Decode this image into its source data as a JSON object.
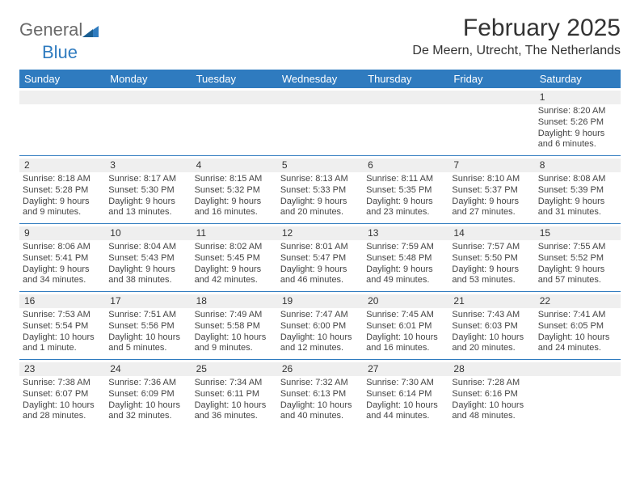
{
  "logo": {
    "text1": "General",
    "text2": "Blue"
  },
  "title": "February 2025",
  "location": "De Meern, Utrecht, The Netherlands",
  "colors": {
    "header_bar": "#2f7bbf",
    "daynum_bg": "#efefef",
    "text": "#333333",
    "rule": "#2f7bbf"
  },
  "days_of_week": [
    "Sunday",
    "Monday",
    "Tuesday",
    "Wednesday",
    "Thursday",
    "Friday",
    "Saturday"
  ],
  "weeks": [
    [
      {
        "n": "",
        "sunrise": "",
        "sunset": "",
        "daylight": ""
      },
      {
        "n": "",
        "sunrise": "",
        "sunset": "",
        "daylight": ""
      },
      {
        "n": "",
        "sunrise": "",
        "sunset": "",
        "daylight": ""
      },
      {
        "n": "",
        "sunrise": "",
        "sunset": "",
        "daylight": ""
      },
      {
        "n": "",
        "sunrise": "",
        "sunset": "",
        "daylight": ""
      },
      {
        "n": "",
        "sunrise": "",
        "sunset": "",
        "daylight": ""
      },
      {
        "n": "1",
        "sunrise": "Sunrise: 8:20 AM",
        "sunset": "Sunset: 5:26 PM",
        "daylight": "Daylight: 9 hours and 6 minutes."
      }
    ],
    [
      {
        "n": "2",
        "sunrise": "Sunrise: 8:18 AM",
        "sunset": "Sunset: 5:28 PM",
        "daylight": "Daylight: 9 hours and 9 minutes."
      },
      {
        "n": "3",
        "sunrise": "Sunrise: 8:17 AM",
        "sunset": "Sunset: 5:30 PM",
        "daylight": "Daylight: 9 hours and 13 minutes."
      },
      {
        "n": "4",
        "sunrise": "Sunrise: 8:15 AM",
        "sunset": "Sunset: 5:32 PM",
        "daylight": "Daylight: 9 hours and 16 minutes."
      },
      {
        "n": "5",
        "sunrise": "Sunrise: 8:13 AM",
        "sunset": "Sunset: 5:33 PM",
        "daylight": "Daylight: 9 hours and 20 minutes."
      },
      {
        "n": "6",
        "sunrise": "Sunrise: 8:11 AM",
        "sunset": "Sunset: 5:35 PM",
        "daylight": "Daylight: 9 hours and 23 minutes."
      },
      {
        "n": "7",
        "sunrise": "Sunrise: 8:10 AM",
        "sunset": "Sunset: 5:37 PM",
        "daylight": "Daylight: 9 hours and 27 minutes."
      },
      {
        "n": "8",
        "sunrise": "Sunrise: 8:08 AM",
        "sunset": "Sunset: 5:39 PM",
        "daylight": "Daylight: 9 hours and 31 minutes."
      }
    ],
    [
      {
        "n": "9",
        "sunrise": "Sunrise: 8:06 AM",
        "sunset": "Sunset: 5:41 PM",
        "daylight": "Daylight: 9 hours and 34 minutes."
      },
      {
        "n": "10",
        "sunrise": "Sunrise: 8:04 AM",
        "sunset": "Sunset: 5:43 PM",
        "daylight": "Daylight: 9 hours and 38 minutes."
      },
      {
        "n": "11",
        "sunrise": "Sunrise: 8:02 AM",
        "sunset": "Sunset: 5:45 PM",
        "daylight": "Daylight: 9 hours and 42 minutes."
      },
      {
        "n": "12",
        "sunrise": "Sunrise: 8:01 AM",
        "sunset": "Sunset: 5:47 PM",
        "daylight": "Daylight: 9 hours and 46 minutes."
      },
      {
        "n": "13",
        "sunrise": "Sunrise: 7:59 AM",
        "sunset": "Sunset: 5:48 PM",
        "daylight": "Daylight: 9 hours and 49 minutes."
      },
      {
        "n": "14",
        "sunrise": "Sunrise: 7:57 AM",
        "sunset": "Sunset: 5:50 PM",
        "daylight": "Daylight: 9 hours and 53 minutes."
      },
      {
        "n": "15",
        "sunrise": "Sunrise: 7:55 AM",
        "sunset": "Sunset: 5:52 PM",
        "daylight": "Daylight: 9 hours and 57 minutes."
      }
    ],
    [
      {
        "n": "16",
        "sunrise": "Sunrise: 7:53 AM",
        "sunset": "Sunset: 5:54 PM",
        "daylight": "Daylight: 10 hours and 1 minute."
      },
      {
        "n": "17",
        "sunrise": "Sunrise: 7:51 AM",
        "sunset": "Sunset: 5:56 PM",
        "daylight": "Daylight: 10 hours and 5 minutes."
      },
      {
        "n": "18",
        "sunrise": "Sunrise: 7:49 AM",
        "sunset": "Sunset: 5:58 PM",
        "daylight": "Daylight: 10 hours and 9 minutes."
      },
      {
        "n": "19",
        "sunrise": "Sunrise: 7:47 AM",
        "sunset": "Sunset: 6:00 PM",
        "daylight": "Daylight: 10 hours and 12 minutes."
      },
      {
        "n": "20",
        "sunrise": "Sunrise: 7:45 AM",
        "sunset": "Sunset: 6:01 PM",
        "daylight": "Daylight: 10 hours and 16 minutes."
      },
      {
        "n": "21",
        "sunrise": "Sunrise: 7:43 AM",
        "sunset": "Sunset: 6:03 PM",
        "daylight": "Daylight: 10 hours and 20 minutes."
      },
      {
        "n": "22",
        "sunrise": "Sunrise: 7:41 AM",
        "sunset": "Sunset: 6:05 PM",
        "daylight": "Daylight: 10 hours and 24 minutes."
      }
    ],
    [
      {
        "n": "23",
        "sunrise": "Sunrise: 7:38 AM",
        "sunset": "Sunset: 6:07 PM",
        "daylight": "Daylight: 10 hours and 28 minutes."
      },
      {
        "n": "24",
        "sunrise": "Sunrise: 7:36 AM",
        "sunset": "Sunset: 6:09 PM",
        "daylight": "Daylight: 10 hours and 32 minutes."
      },
      {
        "n": "25",
        "sunrise": "Sunrise: 7:34 AM",
        "sunset": "Sunset: 6:11 PM",
        "daylight": "Daylight: 10 hours and 36 minutes."
      },
      {
        "n": "26",
        "sunrise": "Sunrise: 7:32 AM",
        "sunset": "Sunset: 6:13 PM",
        "daylight": "Daylight: 10 hours and 40 minutes."
      },
      {
        "n": "27",
        "sunrise": "Sunrise: 7:30 AM",
        "sunset": "Sunset: 6:14 PM",
        "daylight": "Daylight: 10 hours and 44 minutes."
      },
      {
        "n": "28",
        "sunrise": "Sunrise: 7:28 AM",
        "sunset": "Sunset: 6:16 PM",
        "daylight": "Daylight: 10 hours and 48 minutes."
      },
      {
        "n": "",
        "sunrise": "",
        "sunset": "",
        "daylight": ""
      }
    ]
  ]
}
